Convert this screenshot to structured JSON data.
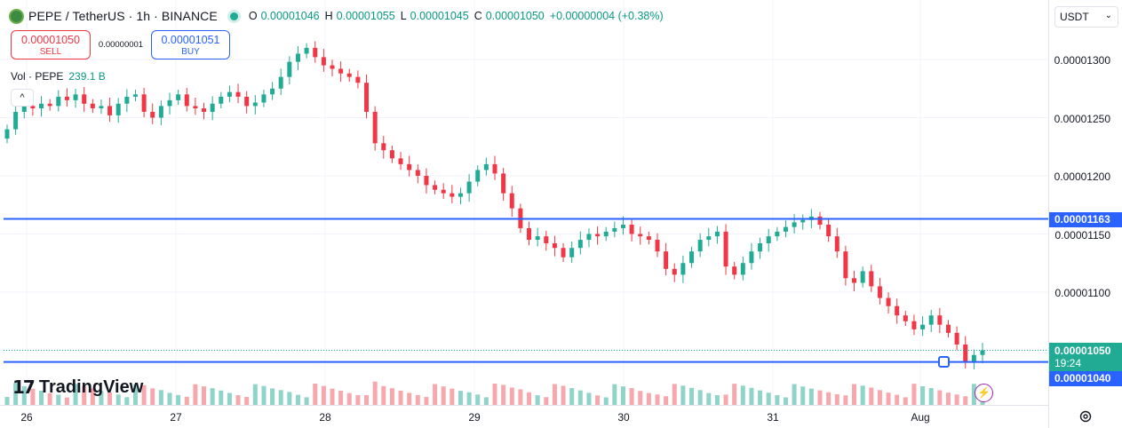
{
  "header": {
    "symbol_title": "PEPE / TetherUS · 1h · BINANCE",
    "ohlc": [
      {
        "key": "O",
        "value": "0.00001046"
      },
      {
        "key": "H",
        "value": "0.00001055"
      },
      {
        "key": "L",
        "value": "0.00001045"
      },
      {
        "key": "C",
        "value": "0.00001050"
      }
    ],
    "change": "+0.00000004 (+0.38%)",
    "icons": {
      "logo": "pepe-logo-icon",
      "live": "live-dot-icon"
    }
  },
  "trade": {
    "sell_price": "0.00001050",
    "sell_label": "SELL",
    "spread": "0.00000001",
    "buy_price": "0.00001051",
    "buy_label": "BUY"
  },
  "volume_legend": {
    "label": "Vol · PEPE",
    "value": "239.1 B"
  },
  "collapse": {
    "icon": "chevron-up-icon",
    "glyph": "^"
  },
  "branding": {
    "mark": "17",
    "text": "TradingView"
  },
  "price_scale": {
    "currency": "USDT",
    "ticks": [
      "0.00001300",
      "0.00001250",
      "0.00001200",
      "0.00001150",
      "0.00001100"
    ],
    "tags": {
      "resistance": "0.00001163",
      "current": "0.00001050",
      "countdown": "19:24",
      "support": "0.00001040"
    }
  },
  "time_scale": {
    "labels": [
      "26",
      "27",
      "28",
      "29",
      "30",
      "31",
      "Aug"
    ]
  },
  "colors": {
    "up": "#22ab94",
    "down": "#f23645",
    "up_vol": "#8fd3c9",
    "down_vol": "#f7a8ad",
    "line": "#2962ff",
    "grid": "#f0f3fa"
  },
  "chart_data": {
    "type": "candlestick",
    "interval": "1h",
    "horizontal_levels": [
      1.163e-05,
      1.04e-05
    ],
    "ylim": [
      1.02e-05,
      1.34e-05
    ],
    "close_series_approx": [
      1.24e-05,
      1.255e-05,
      1.26e-05,
      1.258e-05,
      1.262e-05,
      1.26e-05,
      1.268e-05,
      1.265e-05,
      1.27e-05,
      1.262e-05,
      1.258e-05,
      1.26e-05,
      1.252e-05,
      1.262e-05,
      1.268e-05,
      1.27e-05,
      1.255e-05,
      1.25e-05,
      1.26e-05,
      1.265e-05,
      1.27e-05,
      1.26e-05,
      1.258e-05,
      1.255e-05,
      1.262e-05,
      1.268e-05,
      1.272e-05,
      1.268e-05,
      1.26e-05,
      1.263e-05,
      1.27e-05,
      1.275e-05,
      1.285e-05,
      1.298e-05,
      1.305e-05,
      1.31e-05,
      1.302e-05,
      1.295e-05,
      1.292e-05,
      1.288e-05,
      1.285e-05,
      1.28e-05,
      1.255e-05,
      1.228e-05,
      1.222e-05,
      1.215e-05,
      1.21e-05,
      1.205e-05,
      1.2e-05,
      1.192e-05,
      1.188e-05,
      1.185e-05,
      1.182e-05,
      1.185e-05,
      1.195e-05,
      1.205e-05,
      1.21e-05,
      1.202e-05,
      1.185e-05,
      1.172e-05,
      1.155e-05,
      1.145e-05,
      1.148e-05,
      1.142e-05,
      1.138e-05,
      1.13e-05,
      1.138e-05,
      1.145e-05,
      1.15e-05,
      1.148e-05,
      1.152e-05,
      1.155e-05,
      1.158e-05,
      1.15e-05,
      1.148e-05,
      1.145e-05,
      1.135e-05,
      1.12e-05,
      1.115e-05,
      1.125e-05,
      1.135e-05,
      1.145e-05,
      1.148e-05,
      1.152e-05,
      1.122e-05,
      1.115e-05,
      1.125e-05,
      1.135e-05,
      1.142e-05,
      1.148e-05,
      1.152e-05,
      1.156e-05,
      1.16e-05,
      1.162e-05,
      1.165e-05,
      1.158e-05,
      1.148e-05,
      1.135e-05,
      1.112e-05,
      1.108e-05,
      1.118e-05,
      1.105e-05,
      1.095e-05,
      1.088e-05,
      1.08e-05,
      1.075e-05,
      1.068e-05,
      1.072e-05,
      1.08e-05,
      1.072e-05,
      1.065e-05,
      1.055e-05,
      1.04e-05,
      1.046e-05,
      1.05e-05
    ]
  }
}
